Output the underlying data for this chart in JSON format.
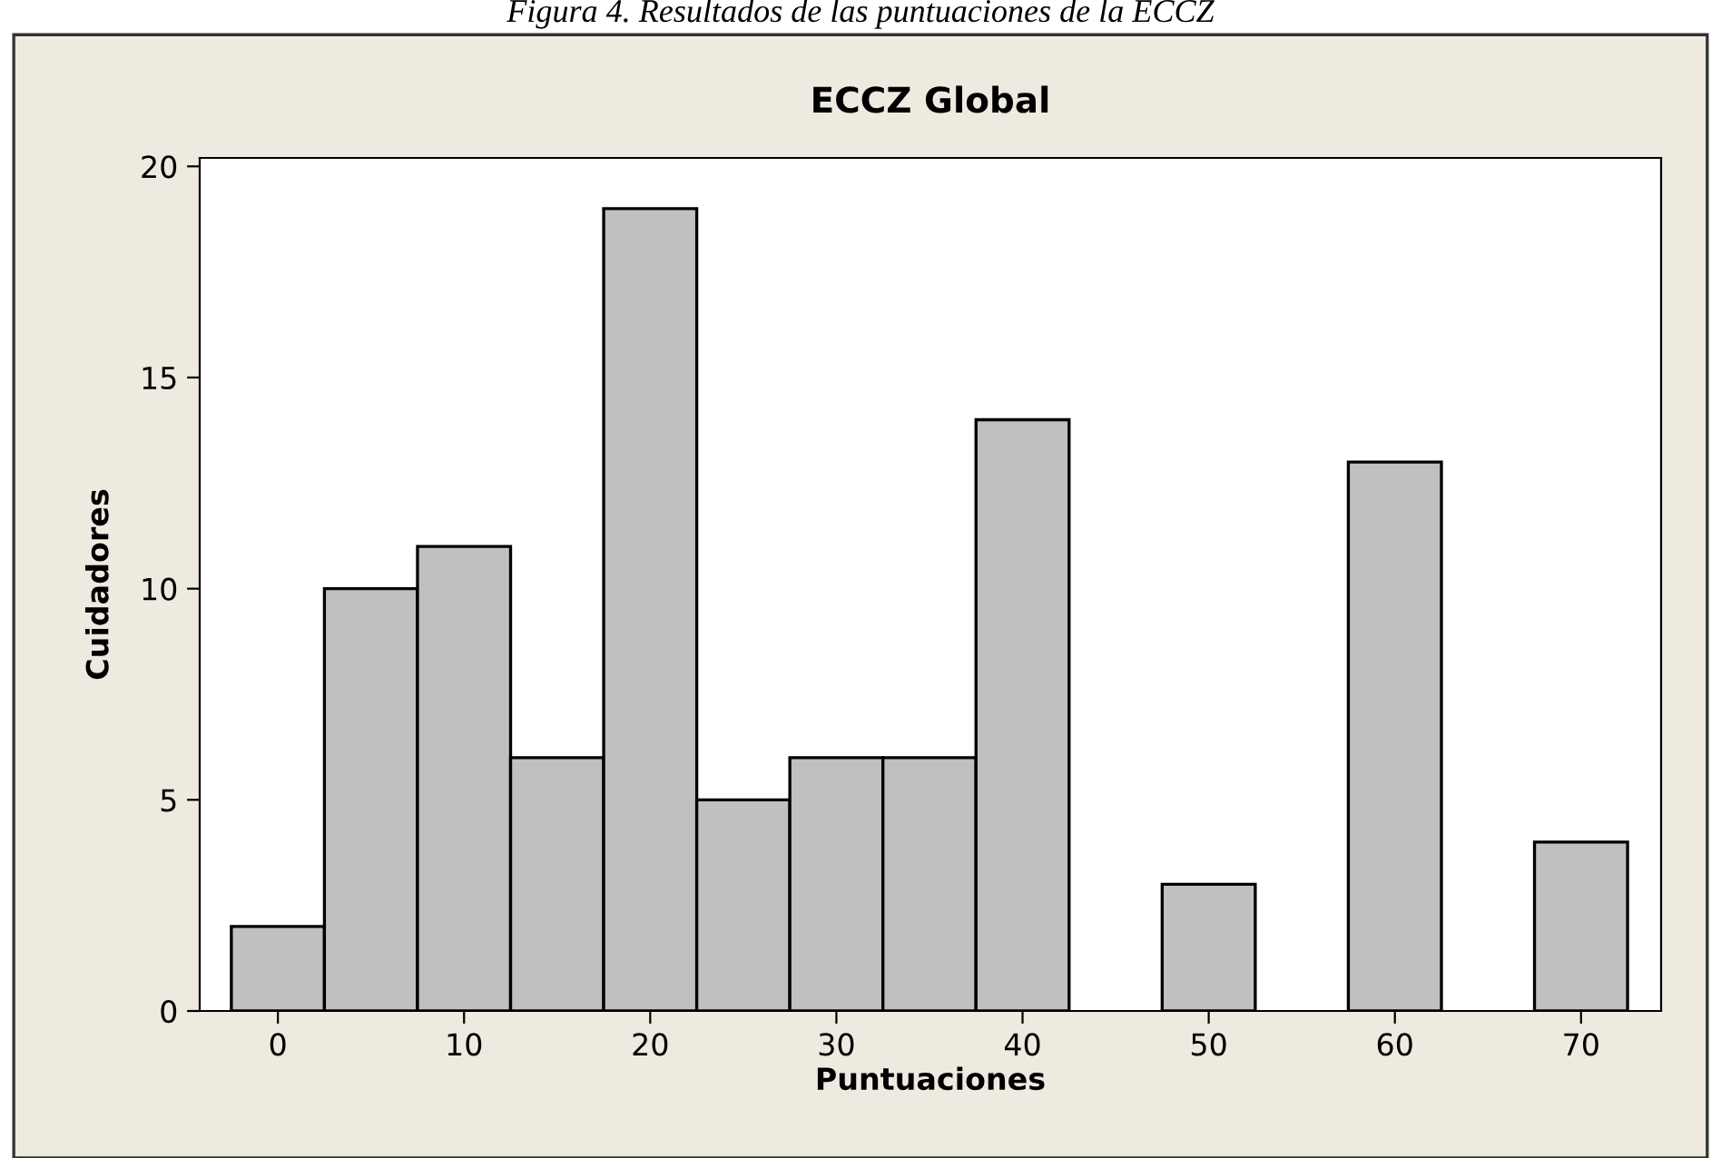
{
  "chart_data": {
    "type": "histogram",
    "title": "ECCZ Global",
    "xlabel": "Puntuaciones",
    "ylabel": "Cuidadores",
    "annotations": [
      "Figura 4. Resultados de las puntuaciones de la ECCZ"
    ],
    "bins": [
      -2.5,
      2.5,
      7.5,
      12.5,
      17.5,
      22.5,
      27.5,
      32.5,
      37.5,
      42.5,
      47.5,
      52.5,
      57.5,
      62.5,
      67.5,
      72.5
    ],
    "values": [
      2,
      10,
      11,
      6,
      19,
      5,
      6,
      6,
      14,
      0,
      3,
      0,
      13,
      0,
      4
    ],
    "color": "#c0c0c0",
    "xlim": [
      -4.2,
      74.3
    ],
    "ylim": [
      0,
      20.2
    ],
    "xticks": [
      0,
      10,
      20,
      30,
      40,
      50,
      60,
      70
    ],
    "yticks": [
      0,
      5,
      10,
      15,
      20
    ],
    "grid": false
  }
}
